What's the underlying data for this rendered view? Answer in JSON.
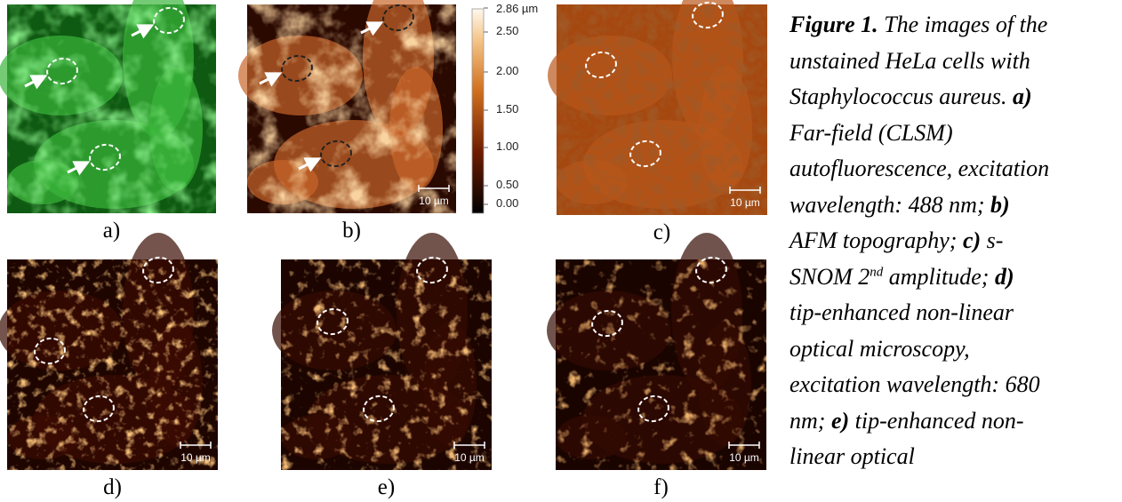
{
  "panels": [
    {
      "label": "a)"
    },
    {
      "label": "b)",
      "scale_bar": "10 µm"
    },
    {
      "label": "c)",
      "scale_bar": "10 µm"
    },
    {
      "label": "d)",
      "scale_bar": "10 µm"
    },
    {
      "label": "e)",
      "scale_bar": "10 µm"
    },
    {
      "label": "f)",
      "scale_bar": "10 µm"
    }
  ],
  "colorbar": {
    "labels": [
      "2.86 µm",
      "2.50",
      "2.00",
      "1.50",
      "1.00",
      "0.50",
      "0.00"
    ]
  },
  "caption": {
    "lines": [
      [
        {
          "text": "Figure 1.",
          "bold": true
        },
        {
          "text": " The images of the"
        }
      ],
      [
        {
          "text": "unstained HeLa cells with"
        }
      ],
      [
        {
          "text": "Staphylococcus aureus. "
        },
        {
          "text": "a)",
          "bold": true
        }
      ],
      [
        {
          "text": "Far-field (CLSM)"
        }
      ],
      [
        {
          "text": "autofluorescence, excitation"
        }
      ],
      [
        {
          "text": "wavelength: 488 nm; "
        },
        {
          "text": "b)",
          "bold": true
        }
      ],
      [
        {
          "text": "AFM topography; "
        },
        {
          "text": "c)",
          "bold": true
        },
        {
          "text": " s-"
        }
      ],
      [
        {
          "text": "SNOM 2"
        },
        {
          "text": "nd",
          "sup": true
        },
        {
          "text": " amplitude; "
        },
        {
          "text": "d)",
          "bold": true
        }
      ],
      [
        {
          "text": "tip-enhanced non-linear"
        }
      ],
      [
        {
          "text": "optical microscopy,"
        }
      ],
      [
        {
          "text": "excitation wavelength: 680"
        }
      ],
      [
        {
          "text": "nm; "
        },
        {
          "text": "e)",
          "bold": true
        },
        {
          "text": " tip-enhanced non-"
        }
      ],
      [
        {
          "text": "linear optical"
        }
      ]
    ]
  }
}
